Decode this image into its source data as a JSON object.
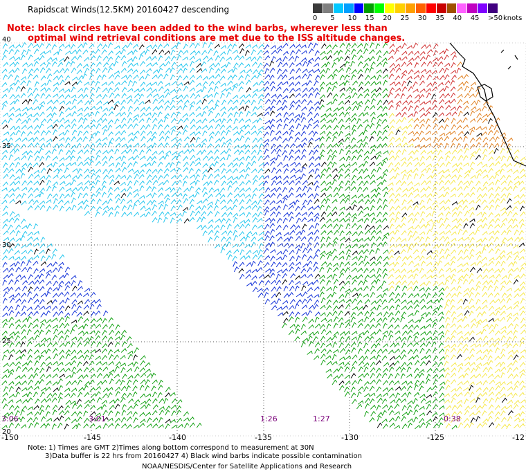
{
  "header": {
    "title": "Rapidscat Winds(12.5KM) 20160427 descending",
    "note_line1": "Note: black circles have been added to the wind barbs, wherever less than",
    "note_line2": "optimal wind retrieval conditions are met due to the ISS altitude changes."
  },
  "legend": {
    "labels": [
      "0",
      "5",
      "10",
      "15",
      "20",
      "25",
      "30",
      "35",
      "40",
      "45",
      ">50"
    ],
    "units": "knots",
    "colors": [
      "#3a3a3a",
      "#7f7f7f",
      "#00c8ff",
      "#00a0ff",
      "#0000ff",
      "#00a000",
      "#00ff00",
      "#ffff00",
      "#ffd000",
      "#ffa000",
      "#ff6000",
      "#ff0000",
      "#c80000",
      "#a05000",
      "#ff60ff",
      "#c000c0",
      "#8000ff",
      "#400080"
    ]
  },
  "map": {
    "lat_labels": [
      "40",
      "35",
      "30",
      "25",
      "20"
    ],
    "lon_labels": [
      "-150",
      "-145",
      "-140",
      "-135",
      "-130",
      "-125",
      "-12"
    ],
    "time_labels": [
      "3:06",
      "3:01",
      "1:26",
      "1:27",
      "0:38"
    ]
  },
  "footer": {
    "line1": "Note: 1) Times are GMT 2)Times along bottom correspond to measurement at 30N",
    "line2": "3)Data buffer is 22 hrs from 20160427 4) Black wind barbs indicate possible contamination",
    "line3": "NOAA/NESDIS/Center for Satellite Applications and Research"
  },
  "colors": {
    "note": "#e80000",
    "time_labels": "#7a007a",
    "cyan": "#22c6ee",
    "blue": "#1030d8",
    "green": "#10a010",
    "yellow": "#f6e84a",
    "orange": "#e08020",
    "red": "#d03030"
  }
}
